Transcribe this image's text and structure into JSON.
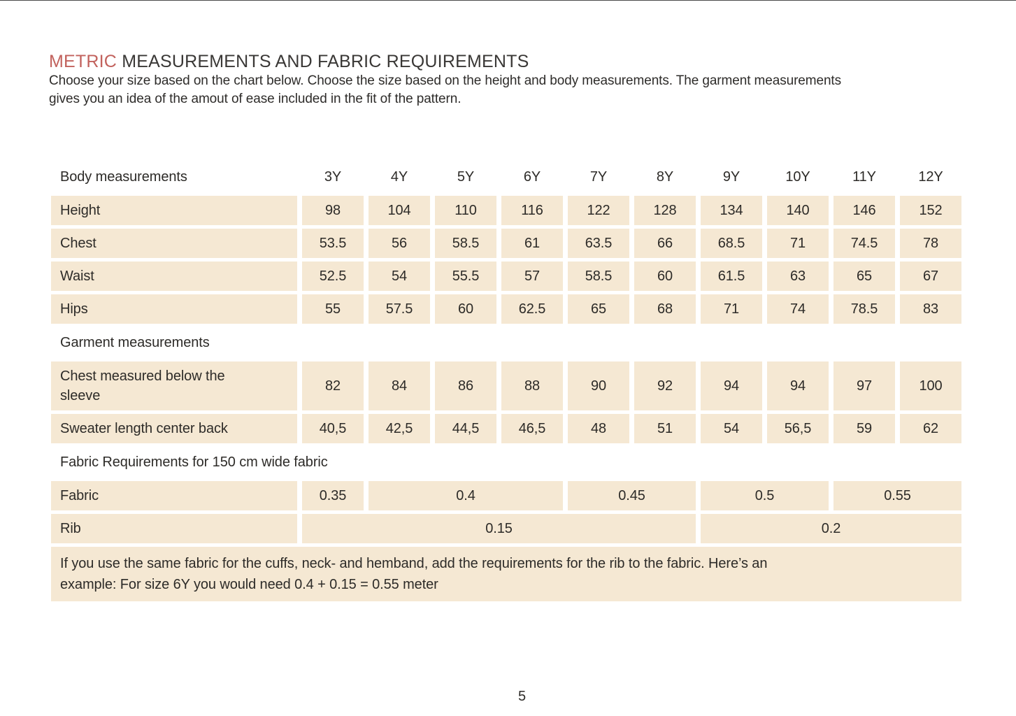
{
  "header": {
    "title_accent": "METRIC",
    "title_rest": "MEASUREMENTS AND FABRIC REQUIREMENTS",
    "subtitle_line1": "Choose your size based on the chart below. Choose the size based on the height and body measurements. The garment measurements",
    "subtitle_line2": "gives you an idea of the amout of ease included in the fit of the pattern."
  },
  "colors": {
    "accent": "#c2625d",
    "cell-bg": "#f5e8d3",
    "text": "#2d2b28"
  },
  "table": {
    "header_label": "Body measurements",
    "sizes": [
      "3Y",
      "4Y",
      "5Y",
      "6Y",
      "7Y",
      "8Y",
      "9Y",
      "10Y",
      "11Y",
      "12Y"
    ],
    "body_rows": [
      {
        "label": "Height",
        "values": [
          "98",
          "104",
          "110",
          "116",
          "122",
          "128",
          "134",
          "140",
          "146",
          "152"
        ]
      },
      {
        "label": "Chest",
        "values": [
          "53.5",
          "56",
          "58.5",
          "61",
          "63.5",
          "66",
          "68.5",
          "71",
          "74.5",
          "78"
        ]
      },
      {
        "label": "Waist",
        "values": [
          "52.5",
          "54",
          "55.5",
          "57",
          "58.5",
          "60",
          "61.5",
          "63",
          "65",
          "67"
        ]
      },
      {
        "label": "Hips",
        "values": [
          "55",
          "57.5",
          "60",
          "62.5",
          "65",
          "68",
          "71",
          "74",
          "78.5",
          "83"
        ]
      }
    ],
    "garment_section_label": "Garment measurements",
    "garment_rows": [
      {
        "label": "Chest measured below the sleeve",
        "values": [
          "82",
          "84",
          "86",
          "88",
          "90",
          "92",
          "94",
          "94",
          "97",
          "100"
        ]
      },
      {
        "label": "Sweater length center back",
        "values": [
          "40,5",
          "42,5",
          "44,5",
          "46,5",
          "48",
          "51",
          "54",
          "56,5",
          "59",
          "62"
        ]
      }
    ],
    "fabric_section_label": "Fabric Requirements for 150 cm wide fabric",
    "fabric_row": {
      "label": "Fabric",
      "cells": [
        {
          "value": "0.35",
          "span": 1
        },
        {
          "value": "0.4",
          "span": 3
        },
        {
          "value": "0.45",
          "span": 2
        },
        {
          "value": "0.5",
          "span": 2
        },
        {
          "value": "0.55",
          "span": 2
        }
      ]
    },
    "rib_row": {
      "label": "Rib",
      "cells": [
        {
          "value": "0.15",
          "span": 6
        },
        {
          "value": "0.2",
          "span": 4
        }
      ]
    },
    "note_line1": "If you use the same fabric for the cuffs, neck- and hemband, add the requirements for the rib to the fabric. Here’s an",
    "note_line2": "example: For size 6Y you would need 0.4 + 0.15 = 0.55 meter"
  },
  "footer": {
    "page_number": "5"
  }
}
